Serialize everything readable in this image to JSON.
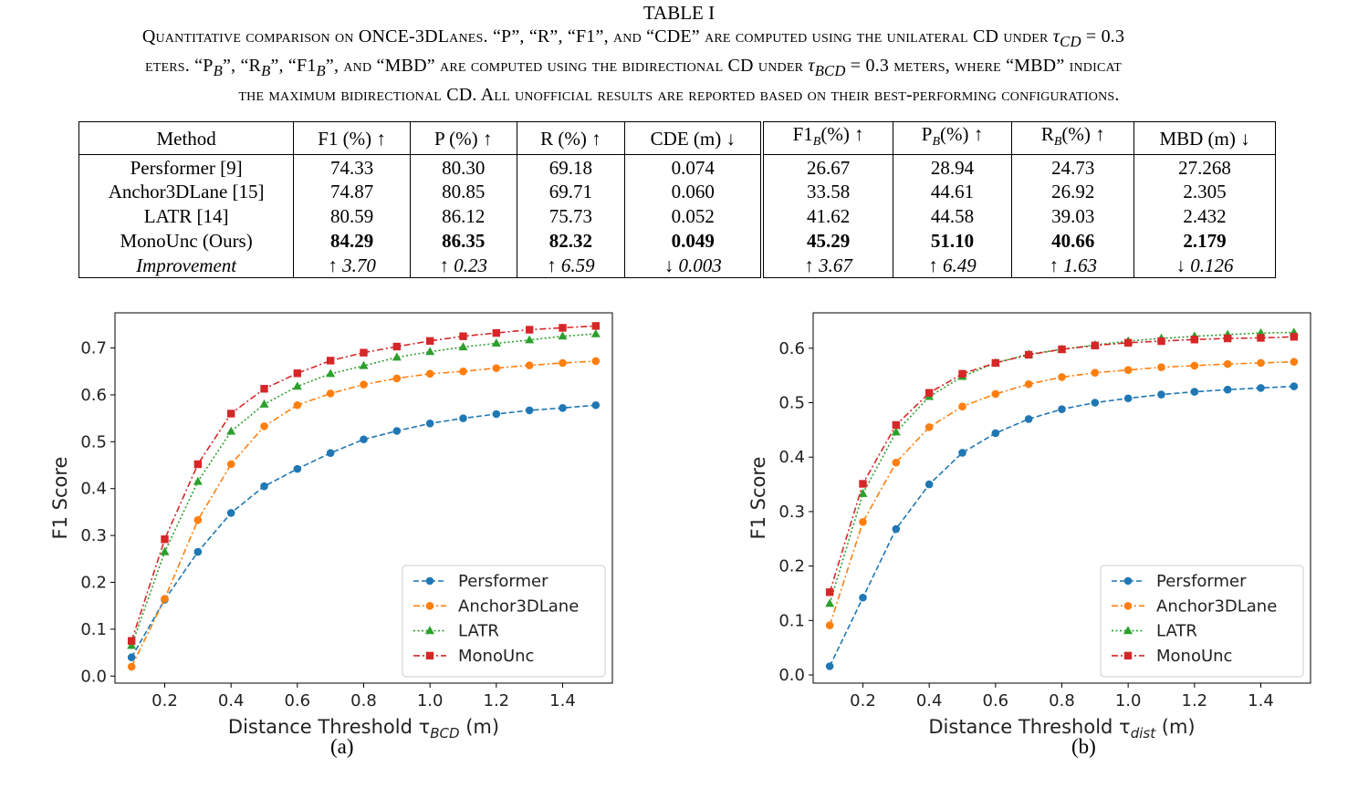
{
  "caption": {
    "table_label": "TABLE I",
    "line1_a": "Quantitative comparison on ONCE-3DLanes. “P”, “R”, “F1”, and “CDE” are computed using the unilateral CD under ",
    "line1_math": "τ",
    "line1_sub": "CD",
    "line1_b": " = 0.3",
    "line2_a": "eters. “P",
    "line2_b": "”, “R",
    "line2_c": "”, “F1",
    "line2_d": "”, and “MBD” are computed using the bidirectional CD under ",
    "line2_sub": "BCD",
    "line2_e": " = 0.3 meters, where “MBD” indicat",
    "line3": "the maximum bidirectional CD. All unofficial results are reported based on their best-performing configurations.",
    "sub_b": "B"
  },
  "table": {
    "headers": [
      "Method",
      "F1 (%) ↑",
      "P (%) ↑",
      "R (%) ↑",
      "CDE (m) ↓",
      "F1",
      "(%) ↑",
      "P",
      "(%) ↑",
      "R",
      "(%) ↑",
      "MBD (m) ↓"
    ],
    "rows": [
      [
        "Persformer [9]",
        "74.33",
        "80.30",
        "69.18",
        "0.074",
        "26.67",
        "28.94",
        "24.73",
        "27.268"
      ],
      [
        "Anchor3DLane [15]",
        "74.87",
        "80.85",
        "69.71",
        "0.060",
        "33.58",
        "44.61",
        "26.92",
        "2.305"
      ],
      [
        "LATR [14]",
        "80.59",
        "86.12",
        "75.73",
        "0.052",
        "41.62",
        "44.58",
        "39.03",
        "2.432"
      ],
      [
        "MonoUnc (Ours)",
        "84.29",
        "86.35",
        "82.32",
        "0.049",
        "45.29",
        "51.10",
        "40.66",
        "2.179"
      ],
      [
        "Improvement",
        "↑ 3.70",
        "↑ 0.23",
        "↑ 6.59",
        "↓ 0.003",
        "↑ 3.67",
        "↑ 6.49",
        "↑ 1.63",
        "↓ 0.126"
      ]
    ]
  },
  "subfig_labels": [
    "(a)",
    "(b)"
  ],
  "chart_data": [
    {
      "type": "line",
      "xlabel": "Distance Threshold τ",
      "xlabel_sub": "BCD",
      "xlabel_unit": " (m)",
      "ylabel": "F1 Score",
      "xlim": [
        0.05,
        1.55
      ],
      "ylim": [
        -0.015,
        0.775
      ],
      "xticks": [
        0.2,
        0.4,
        0.6,
        0.8,
        1.0,
        1.2,
        1.4
      ],
      "xtick_labels": [
        "0.2",
        "0.4",
        "0.6",
        "0.8",
        "1.0",
        "1.2",
        "1.4"
      ],
      "yticks": [
        0.0,
        0.1,
        0.2,
        0.3,
        0.4,
        0.5,
        0.6,
        0.7
      ],
      "ytick_labels": [
        "0.0",
        "0.1",
        "0.2",
        "0.3",
        "0.4",
        "0.5",
        "0.6",
        "0.7"
      ],
      "grid": false,
      "legend_position": "lower-right",
      "x": [
        0.1,
        0.2,
        0.3,
        0.4,
        0.5,
        0.6,
        0.7,
        0.8,
        0.9,
        1.0,
        1.1,
        1.2,
        1.3,
        1.4,
        1.5
      ],
      "series": [
        {
          "name": "Persformer",
          "color": "#1f77b4",
          "marker": "circle",
          "dash": "dashed",
          "values": [
            0.04,
            0.163,
            0.265,
            0.348,
            0.405,
            0.442,
            0.476,
            0.505,
            0.523,
            0.539,
            0.55,
            0.559,
            0.567,
            0.572,
            0.578
          ]
        },
        {
          "name": "Anchor3DLane",
          "color": "#ff7f0e",
          "marker": "circle",
          "dash": "dashdot",
          "values": [
            0.02,
            0.165,
            0.333,
            0.452,
            0.533,
            0.578,
            0.603,
            0.622,
            0.635,
            0.645,
            0.65,
            0.657,
            0.663,
            0.668,
            0.672
          ]
        },
        {
          "name": "LATR",
          "color": "#2ca02c",
          "marker": "triangle",
          "dash": "dotted",
          "values": [
            0.065,
            0.265,
            0.415,
            0.522,
            0.58,
            0.618,
            0.645,
            0.662,
            0.68,
            0.692,
            0.702,
            0.71,
            0.717,
            0.725,
            0.73
          ]
        },
        {
          "name": "MonoUnc",
          "color": "#d62728",
          "marker": "square",
          "dash": "dashdot",
          "values": [
            0.075,
            0.292,
            0.452,
            0.56,
            0.613,
            0.646,
            0.673,
            0.69,
            0.703,
            0.715,
            0.725,
            0.732,
            0.739,
            0.743,
            0.747
          ]
        }
      ]
    },
    {
      "type": "line",
      "xlabel": "Distance Threshold τ",
      "xlabel_sub": "dist",
      "xlabel_unit": " (m)",
      "ylabel": "F1 Score",
      "xlim": [
        0.05,
        1.55
      ],
      "ylim": [
        -0.015,
        0.665
      ],
      "xticks": [
        0.2,
        0.4,
        0.6,
        0.8,
        1.0,
        1.2,
        1.4
      ],
      "xtick_labels": [
        "0.2",
        "0.4",
        "0.6",
        "0.8",
        "1.0",
        "1.2",
        "1.4"
      ],
      "yticks": [
        0.0,
        0.1,
        0.2,
        0.3,
        0.4,
        0.5,
        0.6
      ],
      "ytick_labels": [
        "0.0",
        "0.1",
        "0.2",
        "0.3",
        "0.4",
        "0.5",
        "0.6"
      ],
      "grid": false,
      "legend_position": "lower-right",
      "x": [
        0.1,
        0.2,
        0.3,
        0.4,
        0.5,
        0.6,
        0.7,
        0.8,
        0.9,
        1.0,
        1.1,
        1.2,
        1.3,
        1.4,
        1.5
      ],
      "series": [
        {
          "name": "Persformer",
          "color": "#1f77b4",
          "marker": "circle",
          "dash": "dashed",
          "values": [
            0.016,
            0.142,
            0.268,
            0.35,
            0.408,
            0.444,
            0.47,
            0.488,
            0.5,
            0.508,
            0.515,
            0.52,
            0.524,
            0.527,
            0.53
          ]
        },
        {
          "name": "Anchor3DLane",
          "color": "#ff7f0e",
          "marker": "circle",
          "dash": "dashdot",
          "values": [
            0.091,
            0.281,
            0.39,
            0.455,
            0.493,
            0.516,
            0.534,
            0.547,
            0.555,
            0.56,
            0.565,
            0.568,
            0.571,
            0.573,
            0.575
          ]
        },
        {
          "name": "LATR",
          "color": "#2ca02c",
          "marker": "triangle",
          "dash": "dotted",
          "values": [
            0.131,
            0.333,
            0.446,
            0.511,
            0.548,
            0.573,
            0.589,
            0.598,
            0.606,
            0.613,
            0.618,
            0.622,
            0.625,
            0.628,
            0.629
          ]
        },
        {
          "name": "MonoUnc",
          "color": "#d62728",
          "marker": "square",
          "dash": "dashdot",
          "values": [
            0.152,
            0.351,
            0.459,
            0.518,
            0.553,
            0.573,
            0.588,
            0.598,
            0.605,
            0.61,
            0.613,
            0.616,
            0.618,
            0.619,
            0.621
          ]
        }
      ]
    }
  ]
}
